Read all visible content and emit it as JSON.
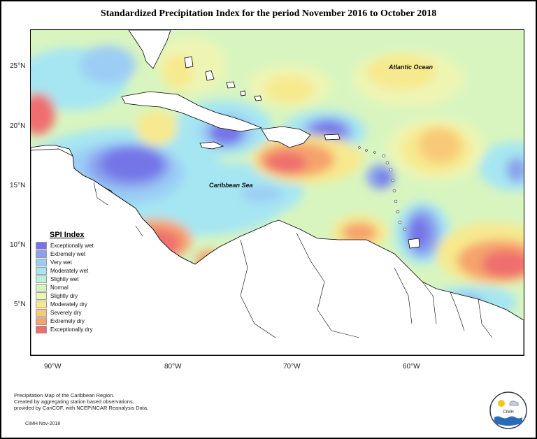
{
  "title": "Standardized Precipitation Index for the period November 2016 to October 2018",
  "lat_labels": [
    "25°N",
    "20°N",
    "15°N",
    "10°N",
    "5°N"
  ],
  "lon_labels": [
    "90°W",
    "80°W",
    "70°W",
    "60°W"
  ],
  "sea_labels": {
    "atlantic": "Atlantic Ocean",
    "caribbean": "Caribbean Sea"
  },
  "legend": {
    "title": "SPI Index",
    "items": [
      {
        "label": "Exceptionally wet",
        "color": "#7474e8"
      },
      {
        "label": "Extremely wet",
        "color": "#8aa2ee"
      },
      {
        "label": "Very wet",
        "color": "#9ccdf5"
      },
      {
        "label": "Moderately wet",
        "color": "#a6e6f2"
      },
      {
        "label": "Slightly wet",
        "color": "#b9f1dc"
      },
      {
        "label": "Normal",
        "color": "#d8f5c0"
      },
      {
        "label": "Slightly dry",
        "color": "#eef5b3"
      },
      {
        "label": "Moderately dry",
        "color": "#f7e98e"
      },
      {
        "label": "Severely dry",
        "color": "#f8c978"
      },
      {
        "label": "Extremely dry",
        "color": "#f6a36c"
      },
      {
        "label": "Exceptionally dry",
        "color": "#ef6e6e"
      }
    ]
  },
  "caption_lines": [
    "Precipitation Map of the Caribbean Region.",
    "Created by aggregating station based observations,",
    "provided by CariCOF, with NCEP/NCAR Reanalysis Data."
  ],
  "credit": "CIMH Nov-2018",
  "logo_text": "CIMH"
}
